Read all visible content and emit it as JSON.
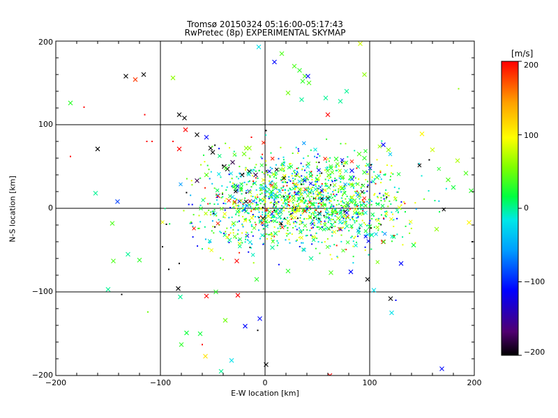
{
  "chart_data": {
    "type": "scatter",
    "title": "Tromsø 20150324 05:16:00-05:17:43",
    "subtitle": "RwPretec (8p) EXPERIMENTAL SKYMAP",
    "xlabel": "E-W location [km]",
    "ylabel": "N-S location [km]",
    "xlim": [
      -200,
      200
    ],
    "ylim": [
      -200,
      200
    ],
    "xticks": [
      "−200",
      "−100",
      "0",
      "100",
      "200"
    ],
    "yticks": [
      "−200",
      "−100",
      "0",
      "100",
      "200"
    ],
    "grid_lines": [
      -100,
      0,
      100
    ],
    "markers": [
      "x",
      "dot"
    ],
    "colorbar": {
      "units": "[m/s]",
      "range": [
        -200,
        200
      ],
      "ticks": [
        "200",
        "100",
        "0",
        "−100",
        "−200"
      ],
      "colormap": [
        "#000000",
        "#500070",
        "#0000ff",
        "#00a0ff",
        "#00e8e8",
        "#00ff40",
        "#80ff00",
        "#ffff00",
        "#ffa000",
        "#ff0000"
      ]
    },
    "points": [
      [
        -133,
        158,
        -200,
        "x"
      ],
      [
        -116,
        160,
        -200,
        "x"
      ],
      [
        -124,
        154,
        180,
        "x"
      ],
      [
        -88,
        156,
        60,
        "x"
      ],
      [
        -186,
        126,
        30,
        "x"
      ],
      [
        -186,
        62,
        200,
        "dot"
      ],
      [
        -160,
        71,
        -200,
        "x"
      ],
      [
        -173,
        121,
        200,
        "dot"
      ],
      [
        -115,
        112,
        200,
        "dot"
      ],
      [
        -82,
        112,
        -200,
        "x"
      ],
      [
        -77,
        108,
        -200,
        "x"
      ],
      [
        -76,
        94,
        200,
        "x"
      ],
      [
        -65,
        88,
        -200,
        "x"
      ],
      [
        -56,
        85,
        -110,
        "x"
      ],
      [
        -52,
        72,
        -200,
        "x"
      ],
      [
        -50,
        67,
        -200,
        "x"
      ],
      [
        -39,
        50,
        -200,
        "x"
      ],
      [
        -36,
        47,
        -200,
        "x"
      ],
      [
        -31,
        55,
        -180,
        "x"
      ],
      [
        -20,
        65,
        50,
        "x"
      ],
      [
        -18,
        72,
        60,
        "x"
      ],
      [
        -15,
        72,
        60,
        "x"
      ],
      [
        -82,
        71,
        200,
        "x"
      ],
      [
        -88,
        80,
        200,
        "dot"
      ],
      [
        -113,
        80,
        200,
        "dot"
      ],
      [
        -108,
        80,
        200,
        "dot"
      ],
      [
        -6,
        193,
        -20,
        "x"
      ],
      [
        9,
        175,
        -110,
        "x"
      ],
      [
        16,
        185,
        40,
        "x"
      ],
      [
        28,
        170,
        40,
        "x"
      ],
      [
        33,
        165,
        30,
        "x"
      ],
      [
        38,
        158,
        40,
        "x"
      ],
      [
        41,
        158,
        -110,
        "x"
      ],
      [
        36,
        152,
        30,
        "x"
      ],
      [
        42,
        150,
        40,
        "x"
      ],
      [
        22,
        138,
        50,
        "x"
      ],
      [
        35,
        130,
        0,
        "x"
      ],
      [
        58,
        132,
        0,
        "x"
      ],
      [
        72,
        128,
        0,
        "x"
      ],
      [
        78,
        140,
        0,
        "x"
      ],
      [
        95,
        160,
        60,
        "x"
      ],
      [
        91,
        197,
        80,
        "x"
      ],
      [
        60,
        112,
        200,
        "x"
      ],
      [
        -13,
        85,
        200,
        "dot"
      ],
      [
        1,
        93,
        -200,
        "dot"
      ],
      [
        -141,
        8,
        -90,
        "x"
      ],
      [
        -162,
        18,
        0,
        "x"
      ],
      [
        -146,
        -18,
        40,
        "x"
      ],
      [
        -145,
        -63,
        40,
        "x"
      ],
      [
        -131,
        -55,
        0,
        "x"
      ],
      [
        -120,
        -62,
        30,
        "x"
      ],
      [
        -150,
        -97,
        0,
        "x"
      ],
      [
        -137,
        -103,
        -200,
        "dot"
      ],
      [
        -83,
        -96,
        -200,
        "x"
      ],
      [
        -81,
        -106,
        0,
        "x"
      ],
      [
        -56,
        -105,
        200,
        "x"
      ],
      [
        -47,
        -100,
        30,
        "x"
      ],
      [
        -26,
        -104,
        200,
        "x"
      ],
      [
        -38,
        -134,
        50,
        "x"
      ],
      [
        -19,
        -141,
        -110,
        "x"
      ],
      [
        -5,
        -132,
        -110,
        "x"
      ],
      [
        -92,
        -73,
        -200,
        "dot"
      ],
      [
        -98,
        -46,
        -200,
        "dot"
      ],
      [
        -82,
        -66,
        -200,
        "dot"
      ],
      [
        -112,
        -124,
        50,
        "dot"
      ],
      [
        -80,
        -163,
        30,
        "x"
      ],
      [
        -75,
        -149,
        20,
        "x"
      ],
      [
        -62,
        -150,
        20,
        "x"
      ],
      [
        -57,
        -177,
        110,
        "x"
      ],
      [
        -42,
        -195,
        0,
        "x"
      ],
      [
        -32,
        -182,
        -20,
        "x"
      ],
      [
        1,
        -187,
        -200,
        "x"
      ],
      [
        -60,
        -163,
        200,
        "dot"
      ],
      [
        -7,
        -146,
        -200,
        "dot"
      ],
      [
        -27,
        -63,
        200,
        "x"
      ],
      [
        120,
        -108,
        -200,
        "x"
      ],
      [
        104,
        -98,
        -20,
        "x"
      ],
      [
        121,
        -125,
        -20,
        "x"
      ],
      [
        125,
        -110,
        -110,
        "dot"
      ],
      [
        169,
        -192,
        -110,
        "x"
      ],
      [
        62,
        -200,
        200,
        "x"
      ],
      [
        185,
        143,
        60,
        "dot"
      ],
      [
        150,
        89,
        100,
        "x"
      ],
      [
        160,
        70,
        80,
        "x"
      ],
      [
        184,
        57,
        70,
        "x"
      ],
      [
        192,
        42,
        40,
        "x"
      ],
      [
        175,
        34,
        40,
        "x"
      ],
      [
        180,
        25,
        20,
        "x"
      ],
      [
        197,
        21,
        30,
        "x"
      ],
      [
        195,
        -17,
        100,
        "x"
      ],
      [
        198,
        -40,
        -200,
        "dot"
      ],
      [
        164,
        -25,
        60,
        "x"
      ],
      [
        142,
        -44,
        20,
        "x"
      ],
      [
        130,
        -66,
        -110,
        "x"
      ],
      [
        113,
        -40,
        200,
        "x"
      ],
      [
        98,
        -85,
        -200,
        "x"
      ],
      [
        82,
        -76,
        -110,
        "x"
      ],
      [
        63,
        -77,
        40,
        "x"
      ],
      [
        44,
        -60,
        0,
        "x"
      ],
      [
        22,
        -75,
        30,
        "x"
      ],
      [
        7,
        -47,
        0,
        "x"
      ],
      [
        -34,
        -38,
        0,
        "x"
      ],
      [
        -8,
        -85,
        30,
        "x"
      ],
      [
        -56,
        40,
        50,
        "x"
      ],
      [
        -65,
        33,
        -180,
        "x"
      ],
      [
        -45,
        15,
        200,
        "x"
      ],
      [
        -22,
        40,
        -200,
        "x"
      ],
      [
        -15,
        44,
        -200,
        "x"
      ],
      [
        -9,
        40,
        -180,
        "x"
      ],
      [
        113,
        76,
        -110,
        "x"
      ],
      [
        118,
        70,
        60,
        "x"
      ],
      [
        90,
        65,
        40,
        "x"
      ],
      [
        95,
        60,
        30,
        "x"
      ],
      [
        68,
        59,
        30,
        "x"
      ],
      [
        83,
        45,
        -110,
        "x"
      ],
      [
        63,
        48,
        20,
        "x"
      ],
      [
        74,
        24,
        20,
        "x"
      ],
      [
        50,
        35,
        70,
        "x"
      ],
      [
        60,
        12,
        -200,
        "x"
      ],
      [
        28,
        0,
        -200,
        "x"
      ],
      [
        38,
        -3,
        0,
        "x"
      ],
      [
        45,
        5,
        40,
        "x"
      ],
      [
        48,
        -10,
        20,
        "x"
      ],
      [
        6,
        20,
        20,
        "x"
      ],
      [
        -10,
        30,
        30,
        "x"
      ],
      [
        -4,
        10,
        0,
        "x"
      ],
      [
        -2,
        -12,
        -200,
        "x"
      ],
      [
        14,
        -10,
        0,
        "x"
      ],
      [
        20,
        10,
        30,
        "x"
      ],
      [
        30,
        18,
        -110,
        "x"
      ],
      [
        -20,
        0,
        -20,
        "x"
      ],
      [
        -30,
        -18,
        40,
        "x"
      ],
      [
        10,
        -30,
        30,
        "x"
      ],
      [
        64,
        -20,
        0,
        "x"
      ],
      [
        70,
        -12,
        60,
        "x"
      ],
      [
        90,
        15,
        0,
        "x"
      ],
      [
        100,
        -22,
        20,
        "x"
      ],
      [
        102,
        -32,
        0,
        "x"
      ],
      [
        107,
        37,
        40,
        "x"
      ],
      [
        95,
        43,
        30,
        "x"
      ]
    ]
  }
}
